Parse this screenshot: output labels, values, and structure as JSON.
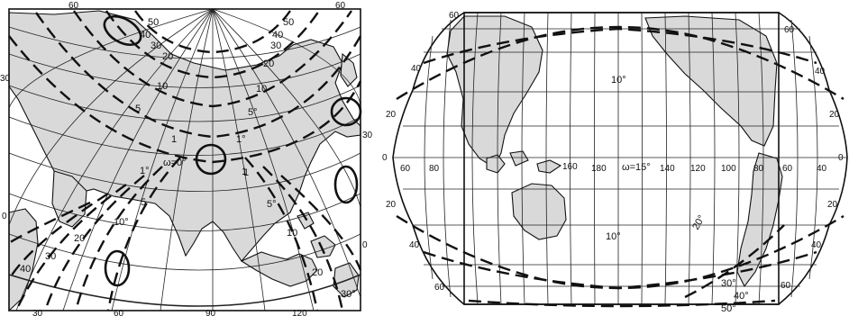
{
  "left_map": {
    "graticule_labels": {
      "top": [
        "60",
        "60"
      ],
      "bottom": [
        "30",
        "60",
        "90",
        "120"
      ],
      "left": [
        "30",
        "0"
      ],
      "right": [
        "30",
        "0"
      ]
    },
    "isoline_labels": [
      "50",
      "40",
      "30",
      "20",
      "50",
      "40",
      "30",
      "20",
      "10",
      "10",
      "5",
      "5°",
      "1",
      "1°",
      "1",
      "1°",
      "ω=0°",
      "5",
      "10°",
      "20",
      "30",
      "40",
      "1",
      "5°",
      "10",
      "20",
      "30°"
    ]
  },
  "right_map": {
    "graticule_labels": {
      "left": [
        "60",
        "40",
        "20",
        "0",
        "20",
        "40",
        "60"
      ],
      "right": [
        "60",
        "40",
        "20",
        "0",
        "20",
        "40",
        "60"
      ],
      "equator": [
        "60",
        "80",
        "160",
        "180",
        "140",
        "120",
        "100",
        "80",
        "60",
        "40"
      ]
    },
    "isoline_labels": [
      "10°",
      "ω=15°",
      "10°",
      "20°",
      "30°",
      "40°",
      "50°"
    ]
  }
}
